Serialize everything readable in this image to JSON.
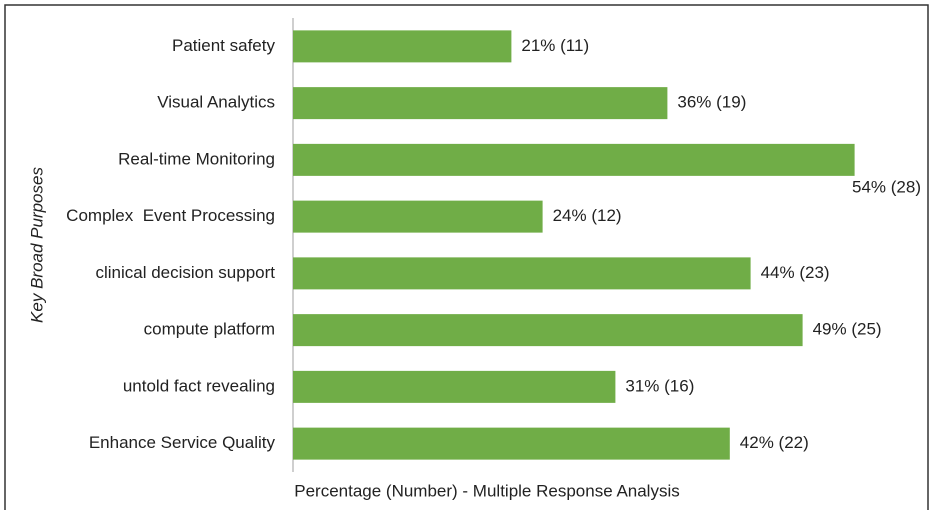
{
  "chart_data": {
    "type": "bar",
    "orientation": "horizontal",
    "y_axis_label": "Key Broad Purposes",
    "x_axis_label": "Percentage (Number) - Multiple Response Analysis",
    "categories": [
      "Patient safety",
      "Visual Analytics",
      "Real-time Monitoring",
      "Complex  Event Processing",
      "clinical decision support",
      "compute platform",
      "untold fact revealing",
      "Enhance Service Quality"
    ],
    "values": [
      21,
      36,
      54,
      24,
      44,
      49,
      31,
      42
    ],
    "value_labels": [
      "21% (11)",
      "36% (19)",
      "54% (28)",
      "24% (12)",
      "44% (23)",
      "49% (25)",
      "31% (16)",
      "42% (22)"
    ],
    "color": "#70ad47",
    "xlim": [
      0,
      60
    ]
  }
}
